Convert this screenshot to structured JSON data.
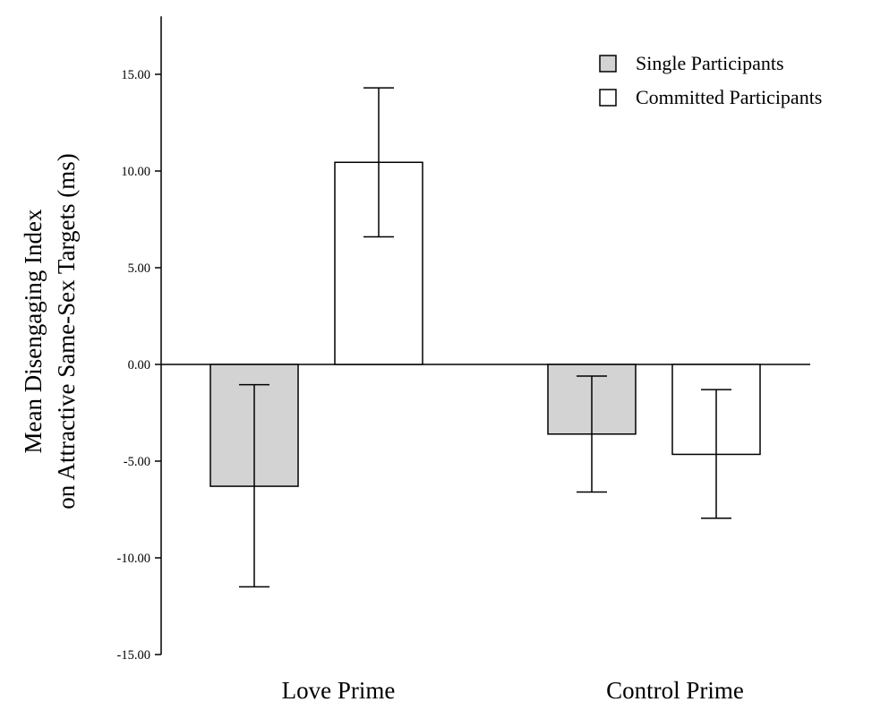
{
  "chart_data": {
    "type": "bar",
    "title": "",
    "xlabel": "",
    "ylabel_lines": [
      "Mean Disengaging Index",
      "on Attractive Same-Sex Targets (ms)"
    ],
    "ylim": [
      -15,
      18
    ],
    "yticks": [
      15,
      10,
      5,
      0,
      -5,
      -10,
      -15
    ],
    "ytick_labels": [
      "15.00",
      "10.00",
      "5.00",
      "0.00",
      "-5.00",
      "-10.00",
      "-15.00"
    ],
    "categories": [
      "Love Prime",
      "Control Prime"
    ],
    "series": [
      {
        "name": "Single Participants",
        "color": "#d3d3d3",
        "values": [
          -6.3,
          -3.6
        ],
        "error_low": [
          -11.5,
          -6.6
        ],
        "error_high": [
          -1.05,
          -0.6
        ]
      },
      {
        "name": "Committed Participants",
        "color": "#ffffff",
        "values": [
          10.45,
          -4.65
        ],
        "error_low": [
          6.6,
          -7.95
        ],
        "error_high": [
          14.3,
          -1.3
        ]
      }
    ],
    "legend_position": "top-right",
    "grid": false
  }
}
